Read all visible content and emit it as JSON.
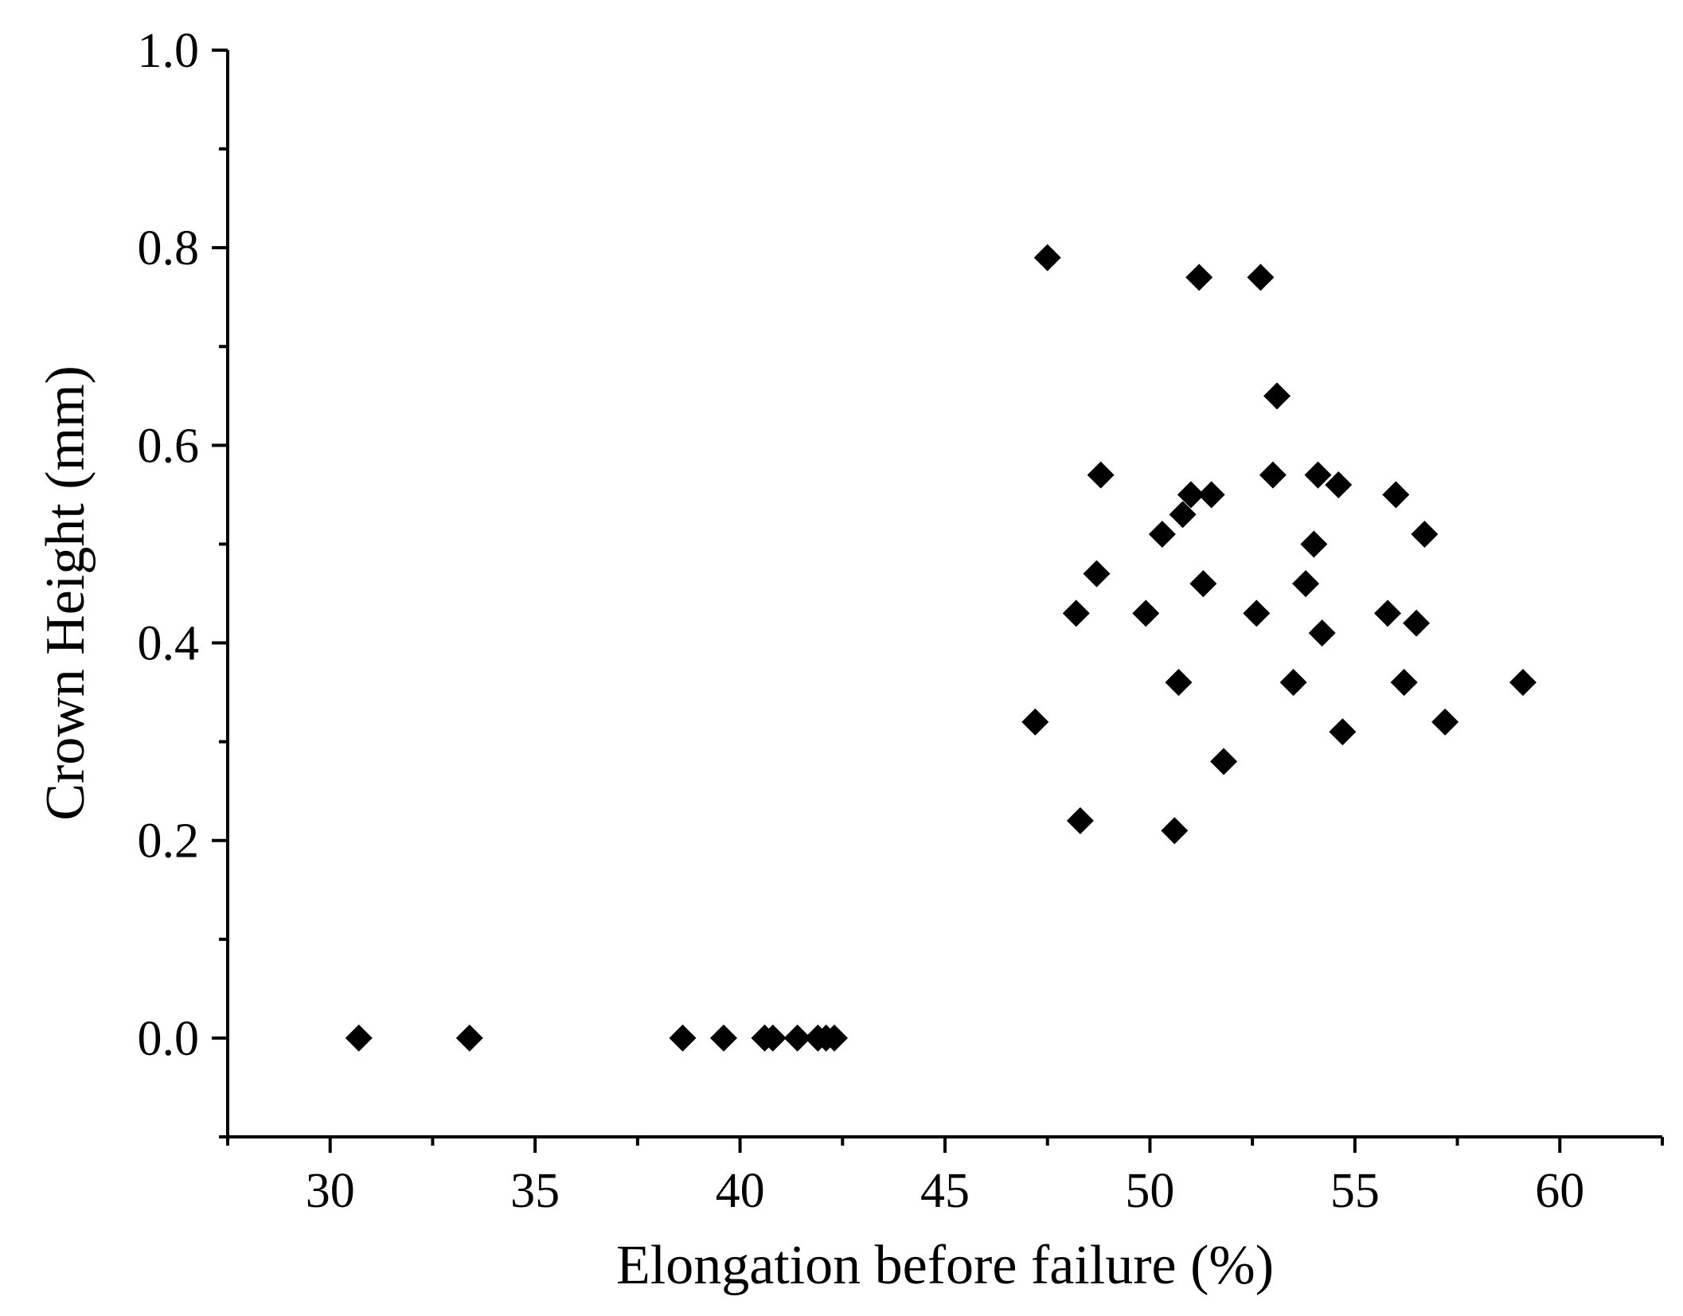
{
  "chart_data": {
    "type": "scatter",
    "title": "",
    "xlabel": "Elongation before failure (%)",
    "ylabel": "Crown Height (mm)",
    "xlim": [
      27.5,
      62.5
    ],
    "ylim": [
      -0.1,
      1.0
    ],
    "x_ticks": [
      30,
      35,
      40,
      45,
      50,
      55,
      60
    ],
    "x_tick_labels": [
      "30",
      "35",
      "40",
      "45",
      "50",
      "55",
      "60"
    ],
    "y_ticks": [
      0.0,
      0.2,
      0.4,
      0.6,
      0.8,
      1.0
    ],
    "y_tick_labels": [
      "0.0",
      "0.2",
      "0.4",
      "0.6",
      "0.8",
      "1.0"
    ],
    "x_minor_step": 2.5,
    "y_minor_step": 0.1,
    "grid": false,
    "legend": "none",
    "marker": "diamond",
    "marker_color": "#000000",
    "series": [
      {
        "points": [
          [
            30.7,
            0.0
          ],
          [
            33.4,
            0.0
          ],
          [
            38.6,
            0.0
          ],
          [
            39.6,
            0.0
          ],
          [
            40.6,
            0.0
          ],
          [
            40.8,
            0.0
          ],
          [
            41.4,
            0.0
          ],
          [
            41.9,
            0.0
          ],
          [
            42.1,
            0.0
          ],
          [
            42.3,
            0.0
          ],
          [
            47.2,
            0.32
          ],
          [
            47.5,
            0.79
          ],
          [
            48.2,
            0.43
          ],
          [
            48.3,
            0.22
          ],
          [
            48.7,
            0.47
          ],
          [
            48.8,
            0.57
          ],
          [
            49.9,
            0.43
          ],
          [
            50.3,
            0.51
          ],
          [
            50.6,
            0.21
          ],
          [
            50.7,
            0.36
          ],
          [
            50.8,
            0.53
          ],
          [
            51.0,
            0.55
          ],
          [
            51.2,
            0.77
          ],
          [
            51.3,
            0.46
          ],
          [
            51.5,
            0.55
          ],
          [
            51.8,
            0.28
          ],
          [
            52.6,
            0.43
          ],
          [
            52.7,
            0.77
          ],
          [
            53.0,
            0.57
          ],
          [
            53.1,
            0.65
          ],
          [
            53.5,
            0.36
          ],
          [
            53.8,
            0.46
          ],
          [
            54.0,
            0.5
          ],
          [
            54.1,
            0.57
          ],
          [
            54.2,
            0.41
          ],
          [
            54.6,
            0.56
          ],
          [
            54.7,
            0.31
          ],
          [
            55.8,
            0.43
          ],
          [
            56.0,
            0.55
          ],
          [
            56.2,
            0.36
          ],
          [
            56.5,
            0.42
          ],
          [
            56.7,
            0.51
          ],
          [
            57.2,
            0.32
          ],
          [
            59.1,
            0.36
          ]
        ]
      }
    ]
  }
}
